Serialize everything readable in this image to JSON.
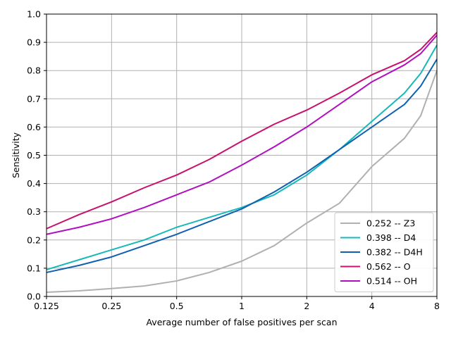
{
  "chart_data": {
    "type": "line",
    "xlabel": "Average number of false positives per scan",
    "ylabel": "Sensitivity",
    "xscale": "log2",
    "xlim": [
      0.125,
      8
    ],
    "ylim": [
      0.0,
      1.0
    ],
    "xticks": [
      0.125,
      0.25,
      0.5,
      1,
      2,
      4,
      8
    ],
    "xtick_labels": [
      "0.125",
      "0.25",
      "0.5",
      "1",
      "2",
      "4",
      "8"
    ],
    "yticks": [
      0.0,
      0.1,
      0.2,
      0.3,
      0.4,
      0.5,
      0.6,
      0.7,
      0.8,
      0.9,
      1.0
    ],
    "ytick_labels": [
      "0.0",
      "0.1",
      "0.2",
      "0.3",
      "0.4",
      "0.5",
      "0.6",
      "0.7",
      "0.8",
      "0.9",
      "1.0"
    ],
    "grid": true,
    "legend_position": "lower-right",
    "series": [
      {
        "name": "0.252 -- Z3",
        "color": "#b0b0b0",
        "x": [
          0.125,
          0.177,
          0.25,
          0.354,
          0.5,
          0.707,
          1.0,
          1.414,
          2.0,
          2.83,
          4.0,
          5.66,
          6.73,
          8.0
        ],
        "y": [
          0.015,
          0.02,
          0.028,
          0.037,
          0.055,
          0.085,
          0.125,
          0.18,
          0.26,
          0.33,
          0.46,
          0.56,
          0.64,
          0.8
        ]
      },
      {
        "name": "0.398 -- D4",
        "color": "#17b8b8",
        "x": [
          0.125,
          0.177,
          0.25,
          0.354,
          0.5,
          0.707,
          1.0,
          1.414,
          2.0,
          2.83,
          4.0,
          5.66,
          6.73,
          8.0
        ],
        "y": [
          0.095,
          0.13,
          0.165,
          0.2,
          0.245,
          0.28,
          0.315,
          0.36,
          0.43,
          0.52,
          0.62,
          0.72,
          0.79,
          0.89
        ]
      },
      {
        "name": "0.382 -- D4H",
        "color": "#1060b0",
        "x": [
          0.125,
          0.177,
          0.25,
          0.354,
          0.5,
          0.707,
          1.0,
          1.414,
          2.0,
          2.83,
          4.0,
          5.66,
          6.73,
          8.0
        ],
        "y": [
          0.085,
          0.11,
          0.14,
          0.18,
          0.22,
          0.265,
          0.31,
          0.37,
          0.44,
          0.52,
          0.6,
          0.68,
          0.745,
          0.84
        ]
      },
      {
        "name": "0.562 -- O",
        "color": "#c8106e",
        "x": [
          0.125,
          0.177,
          0.25,
          0.354,
          0.5,
          0.707,
          1.0,
          1.414,
          2.0,
          2.83,
          4.0,
          5.66,
          6.73,
          8.0
        ],
        "y": [
          0.24,
          0.29,
          0.335,
          0.385,
          0.43,
          0.485,
          0.55,
          0.61,
          0.66,
          0.72,
          0.785,
          0.835,
          0.875,
          0.935
        ]
      },
      {
        "name": "0.514 -- OH",
        "color": "#b010c0",
        "x": [
          0.125,
          0.177,
          0.25,
          0.354,
          0.5,
          0.707,
          1.0,
          1.414,
          2.0,
          2.83,
          4.0,
          5.66,
          6.73,
          8.0
        ],
        "y": [
          0.22,
          0.245,
          0.275,
          0.315,
          0.36,
          0.405,
          0.465,
          0.53,
          0.6,
          0.68,
          0.76,
          0.82,
          0.86,
          0.925
        ]
      }
    ]
  }
}
